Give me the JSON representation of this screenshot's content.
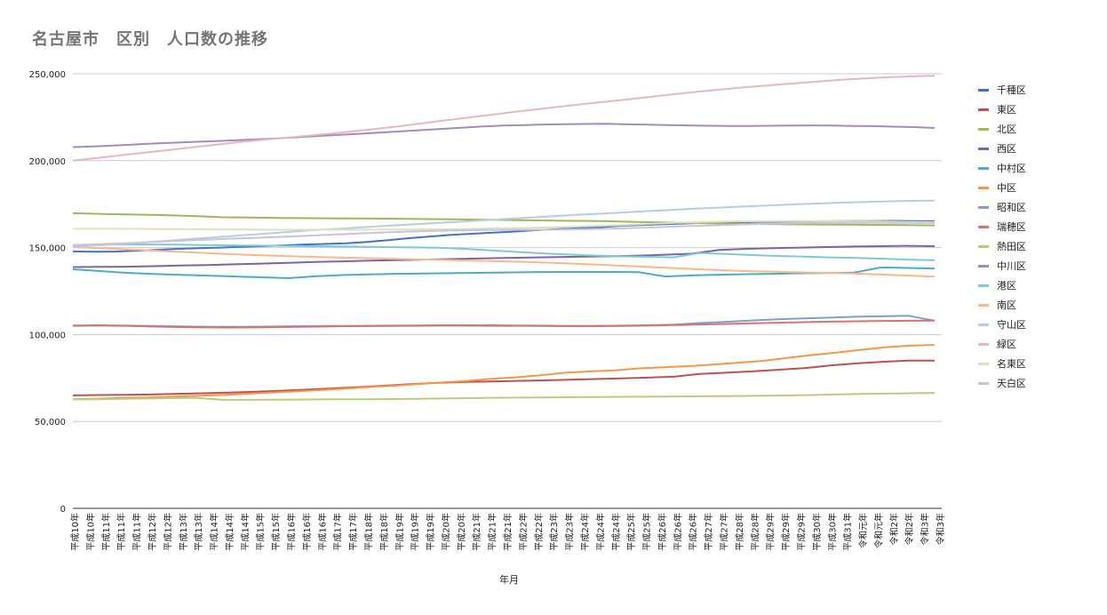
{
  "chart_data": {
    "type": "line",
    "title": "名古屋市　区別　人口数の推移",
    "xlabel": "年月",
    "ylabel": "",
    "ylim": [
      0,
      250000
    ],
    "yticks": [
      0,
      50000,
      100000,
      150000,
      200000,
      250000
    ],
    "ytick_labels": [
      "0",
      "50,000",
      "100,000",
      "150,000",
      "200,000",
      "250,000"
    ],
    "grid": true,
    "legend_position": "right",
    "x_tick_labels": [
      "平成10年",
      "平成10年",
      "平成11年",
      "平成11年",
      "平成11年",
      "平成12年",
      "平成12年",
      "平成13年",
      "平成13年",
      "平成14年",
      "平成14年",
      "平成14年",
      "平成15年",
      "平成15年",
      "平成16年",
      "平成16年",
      "平成16年",
      "平成17年",
      "平成17年",
      "平成18年",
      "平成18年",
      "平成19年",
      "平成19年",
      "平成19年",
      "平成20年",
      "平成20年",
      "平成21年",
      "平成21年",
      "平成21年",
      "平成22年",
      "平成22年",
      "平成23年",
      "平成23年",
      "平成24年",
      "平成24年",
      "平成24年",
      "平成25年",
      "平成25年",
      "平成26年",
      "平成26年",
      "平成26年",
      "平成27年",
      "平成27年",
      "平成28年",
      "平成28年",
      "平成29年",
      "平成29年",
      "平成29年",
      "平成30年",
      "平成30年",
      "平成31年",
      "令和元年",
      "令和元年",
      "令和2年",
      "令和2年",
      "令和3年",
      "令和3年"
    ],
    "series": [
      {
        "name": "千種区",
        "color": "#4472c4",
        "values": [
          147800,
          147600,
          147700,
          148200,
          148700,
          149300,
          149700,
          150000,
          150400,
          150800,
          151300,
          151800,
          152100,
          152500,
          153200,
          154300,
          155400,
          156400,
          157300,
          158000,
          158600,
          159200,
          160000,
          160600,
          161200,
          161700,
          162500,
          163000,
          163400,
          163800,
          164200,
          164400,
          164600,
          164900,
          165000,
          165100,
          165200,
          165300,
          165300,
          165400,
          165300,
          165200
        ]
      },
      {
        "name": "東区",
        "color": "#c0504d",
        "values": [
          65000,
          65200,
          65300,
          65500,
          65900,
          66200,
          66600,
          67100,
          67700,
          68300,
          69000,
          69800,
          70600,
          71500,
          72200,
          72700,
          73000,
          73300,
          73600,
          74000,
          74400,
          74800,
          75200,
          75700,
          77300,
          78000,
          78800,
          79700,
          80700,
          82200,
          83400,
          84300,
          85000,
          85000
        ]
      },
      {
        "name": "北区",
        "color": "#9bbb59",
        "values": [
          169800,
          169400,
          169000,
          168700,
          168200,
          167500,
          167300,
          167100,
          166900,
          166800,
          166700,
          166600,
          166400,
          166200,
          166000,
          165800,
          165600,
          165400,
          165200,
          164800,
          164400,
          164100,
          163800,
          163600,
          163400,
          163300,
          163200,
          163100,
          163000,
          162800
        ]
      },
      {
        "name": "西区",
        "color": "#8064a2",
        "values": [
          138800,
          138900,
          139000,
          139300,
          139700,
          140000,
          140400,
          140800,
          141200,
          141700,
          142100,
          142500,
          142800,
          143100,
          143400,
          143700,
          144000,
          144300,
          144600,
          144800,
          145000,
          145400,
          145900,
          146500,
          148600,
          149300,
          149700,
          150000,
          150300,
          150600,
          150800,
          151000,
          150800
        ]
      },
      {
        "name": "中村区",
        "color": "#4bacc6",
        "values": [
          137500,
          136500,
          135500,
          134800,
          134300,
          133900,
          133400,
          132900,
          132400,
          133500,
          134200,
          134600,
          134900,
          135100,
          135300,
          135500,
          135700,
          135900,
          136000,
          136000,
          136000,
          135900,
          133400,
          134000,
          134400,
          134700,
          134900,
          135200,
          135400,
          135600,
          138600,
          138300,
          138000
        ]
      },
      {
        "name": "中区",
        "color": "#f79646",
        "values": [
          62800,
          63100,
          63500,
          63800,
          64200,
          64700,
          65200,
          65900,
          66600,
          67300,
          68000,
          68800,
          69800,
          70500,
          71500,
          72400,
          73300,
          74500,
          75400,
          76600,
          78000,
          78800,
          79400,
          80500,
          81200,
          81800,
          82700,
          83800,
          84800,
          86500,
          88200,
          89600,
          91200,
          92700,
          93600,
          94000
        ]
      },
      {
        "name": "昭和区",
        "color": "#7f9fcd",
        "values": [
          105200,
          105300,
          105100,
          104900,
          104700,
          104500,
          104400,
          104500,
          104700,
          104800,
          104900,
          105000,
          105100,
          105200,
          105300,
          105300,
          105300,
          105200,
          105100,
          105000,
          105000,
          105100,
          105300,
          105700,
          106600,
          107300,
          108100,
          108800,
          109300,
          109700,
          110200,
          110500,
          110800,
          108000
        ]
      },
      {
        "name": "瑞穂区",
        "color": "#d9736e",
        "values": [
          105000,
          105100,
          105000,
          104600,
          104300,
          104100,
          104000,
          104100,
          104300,
          104500,
          104700,
          104800,
          104900,
          105000,
          105100,
          105100,
          105000,
          105000,
          104900,
          104800,
          104800,
          104900,
          105100,
          105400,
          105800,
          106100,
          106500,
          106800,
          107100,
          107400,
          107600,
          107800,
          107900,
          108000
        ]
      },
      {
        "name": "熱田区",
        "color": "#b4cf7d",
        "values": [
          62700,
          62800,
          63000,
          63200,
          63400,
          63600,
          62500,
          62400,
          62500,
          62600,
          62700,
          62800,
          62800,
          62900,
          63000,
          63200,
          63400,
          63600,
          63700,
          63800,
          63900,
          64000,
          64100,
          64200,
          64300,
          64400,
          64500,
          64600,
          64800,
          65000,
          65200,
          65500,
          65800,
          66000,
          66200,
          66400
        ]
      },
      {
        "name": "中川区",
        "color": "#a38bc0",
        "values": [
          207800,
          208200,
          208700,
          209300,
          209900,
          210400,
          210900,
          211300,
          211800,
          212300,
          212900,
          213500,
          214200,
          214900,
          215500,
          216200,
          216900,
          217600,
          218300,
          219000,
          219700,
          220200,
          220500,
          220800,
          221000,
          221100,
          221200,
          220900,
          220700,
          220500,
          220300,
          220100,
          220000,
          220000,
          220100,
          220200,
          220300,
          220200,
          220000,
          219900,
          219600,
          219300,
          218800
        ]
      },
      {
        "name": "港区",
        "color": "#7fc8d8",
        "values": [
          151500,
          151700,
          151800,
          151800,
          151700,
          151500,
          151300,
          151100,
          151000,
          150800,
          150700,
          150500,
          150300,
          150100,
          149900,
          149300,
          148400,
          147500,
          146700,
          146000,
          145400,
          145000,
          144700,
          144400,
          146900,
          146300,
          145700,
          145200,
          144800,
          144400,
          144000,
          143600,
          143100,
          142700
        ]
      },
      {
        "name": "南区",
        "color": "#f9b889",
        "values": [
          150300,
          149800,
          149200,
          148600,
          148000,
          147400,
          146800,
          146200,
          145700,
          145300,
          144900,
          144600,
          144200,
          143900,
          143600,
          143300,
          143000,
          142700,
          142400,
          142100,
          141700,
          141300,
          140800,
          140300,
          139700,
          139100,
          138500,
          137900,
          137300,
          136800,
          136400,
          136100,
          135800,
          135500,
          135200,
          134800,
          134300,
          133800,
          133300
        ]
      },
      {
        "name": "守山区",
        "color": "#b8cce4",
        "values": [
          150500,
          151300,
          152100,
          153000,
          154000,
          155000,
          156000,
          157000,
          158000,
          159000,
          160000,
          160800,
          161600,
          162400,
          163200,
          164000,
          164800,
          165600,
          166400,
          167200,
          168000,
          168800,
          169500,
          170200,
          171000,
          171700,
          172400,
          173000,
          173600,
          174200,
          174800,
          175300,
          175800,
          176200,
          176600,
          176900,
          177000
        ]
      },
      {
        "name": "緑区",
        "color": "#e6b9b8",
        "values": [
          200100,
          201500,
          203000,
          204500,
          206000,
          207500,
          209000,
          210500,
          211800,
          213000,
          214200,
          215500,
          216800,
          218300,
          219800,
          221500,
          223200,
          224900,
          226500,
          228100,
          229700,
          231200,
          232700,
          234100,
          235500,
          237000,
          238500,
          239900,
          241200,
          242400,
          243500,
          244500,
          245500,
          246500,
          247300,
          248000,
          248500,
          248800
        ]
      },
      {
        "name": "名東区",
        "color": "#d7e4bd",
        "values": [
          160800,
          160900,
          160800,
          160700,
          160600,
          160500,
          160400,
          160300,
          160300,
          160300,
          160300,
          160400,
          160500,
          160600,
          160800,
          161100,
          161400,
          161800,
          162300,
          162900,
          163600,
          164300,
          164800,
          165100,
          165200,
          165300,
          165200,
          165100,
          165000,
          164800,
          164600
        ]
      },
      {
        "name": "天白区",
        "color": "#ccc1da",
        "values": [
          151500,
          152000,
          152600,
          153300,
          154000,
          154700,
          155300,
          155900,
          156500,
          157200,
          157900,
          158600,
          159200,
          159600,
          159900,
          160100,
          160200,
          160300,
          160500,
          160800,
          161200,
          161700,
          162300,
          162800,
          163300,
          163700,
          164000,
          164200,
          164300,
          164300,
          164200,
          164100
        ]
      }
    ]
  }
}
